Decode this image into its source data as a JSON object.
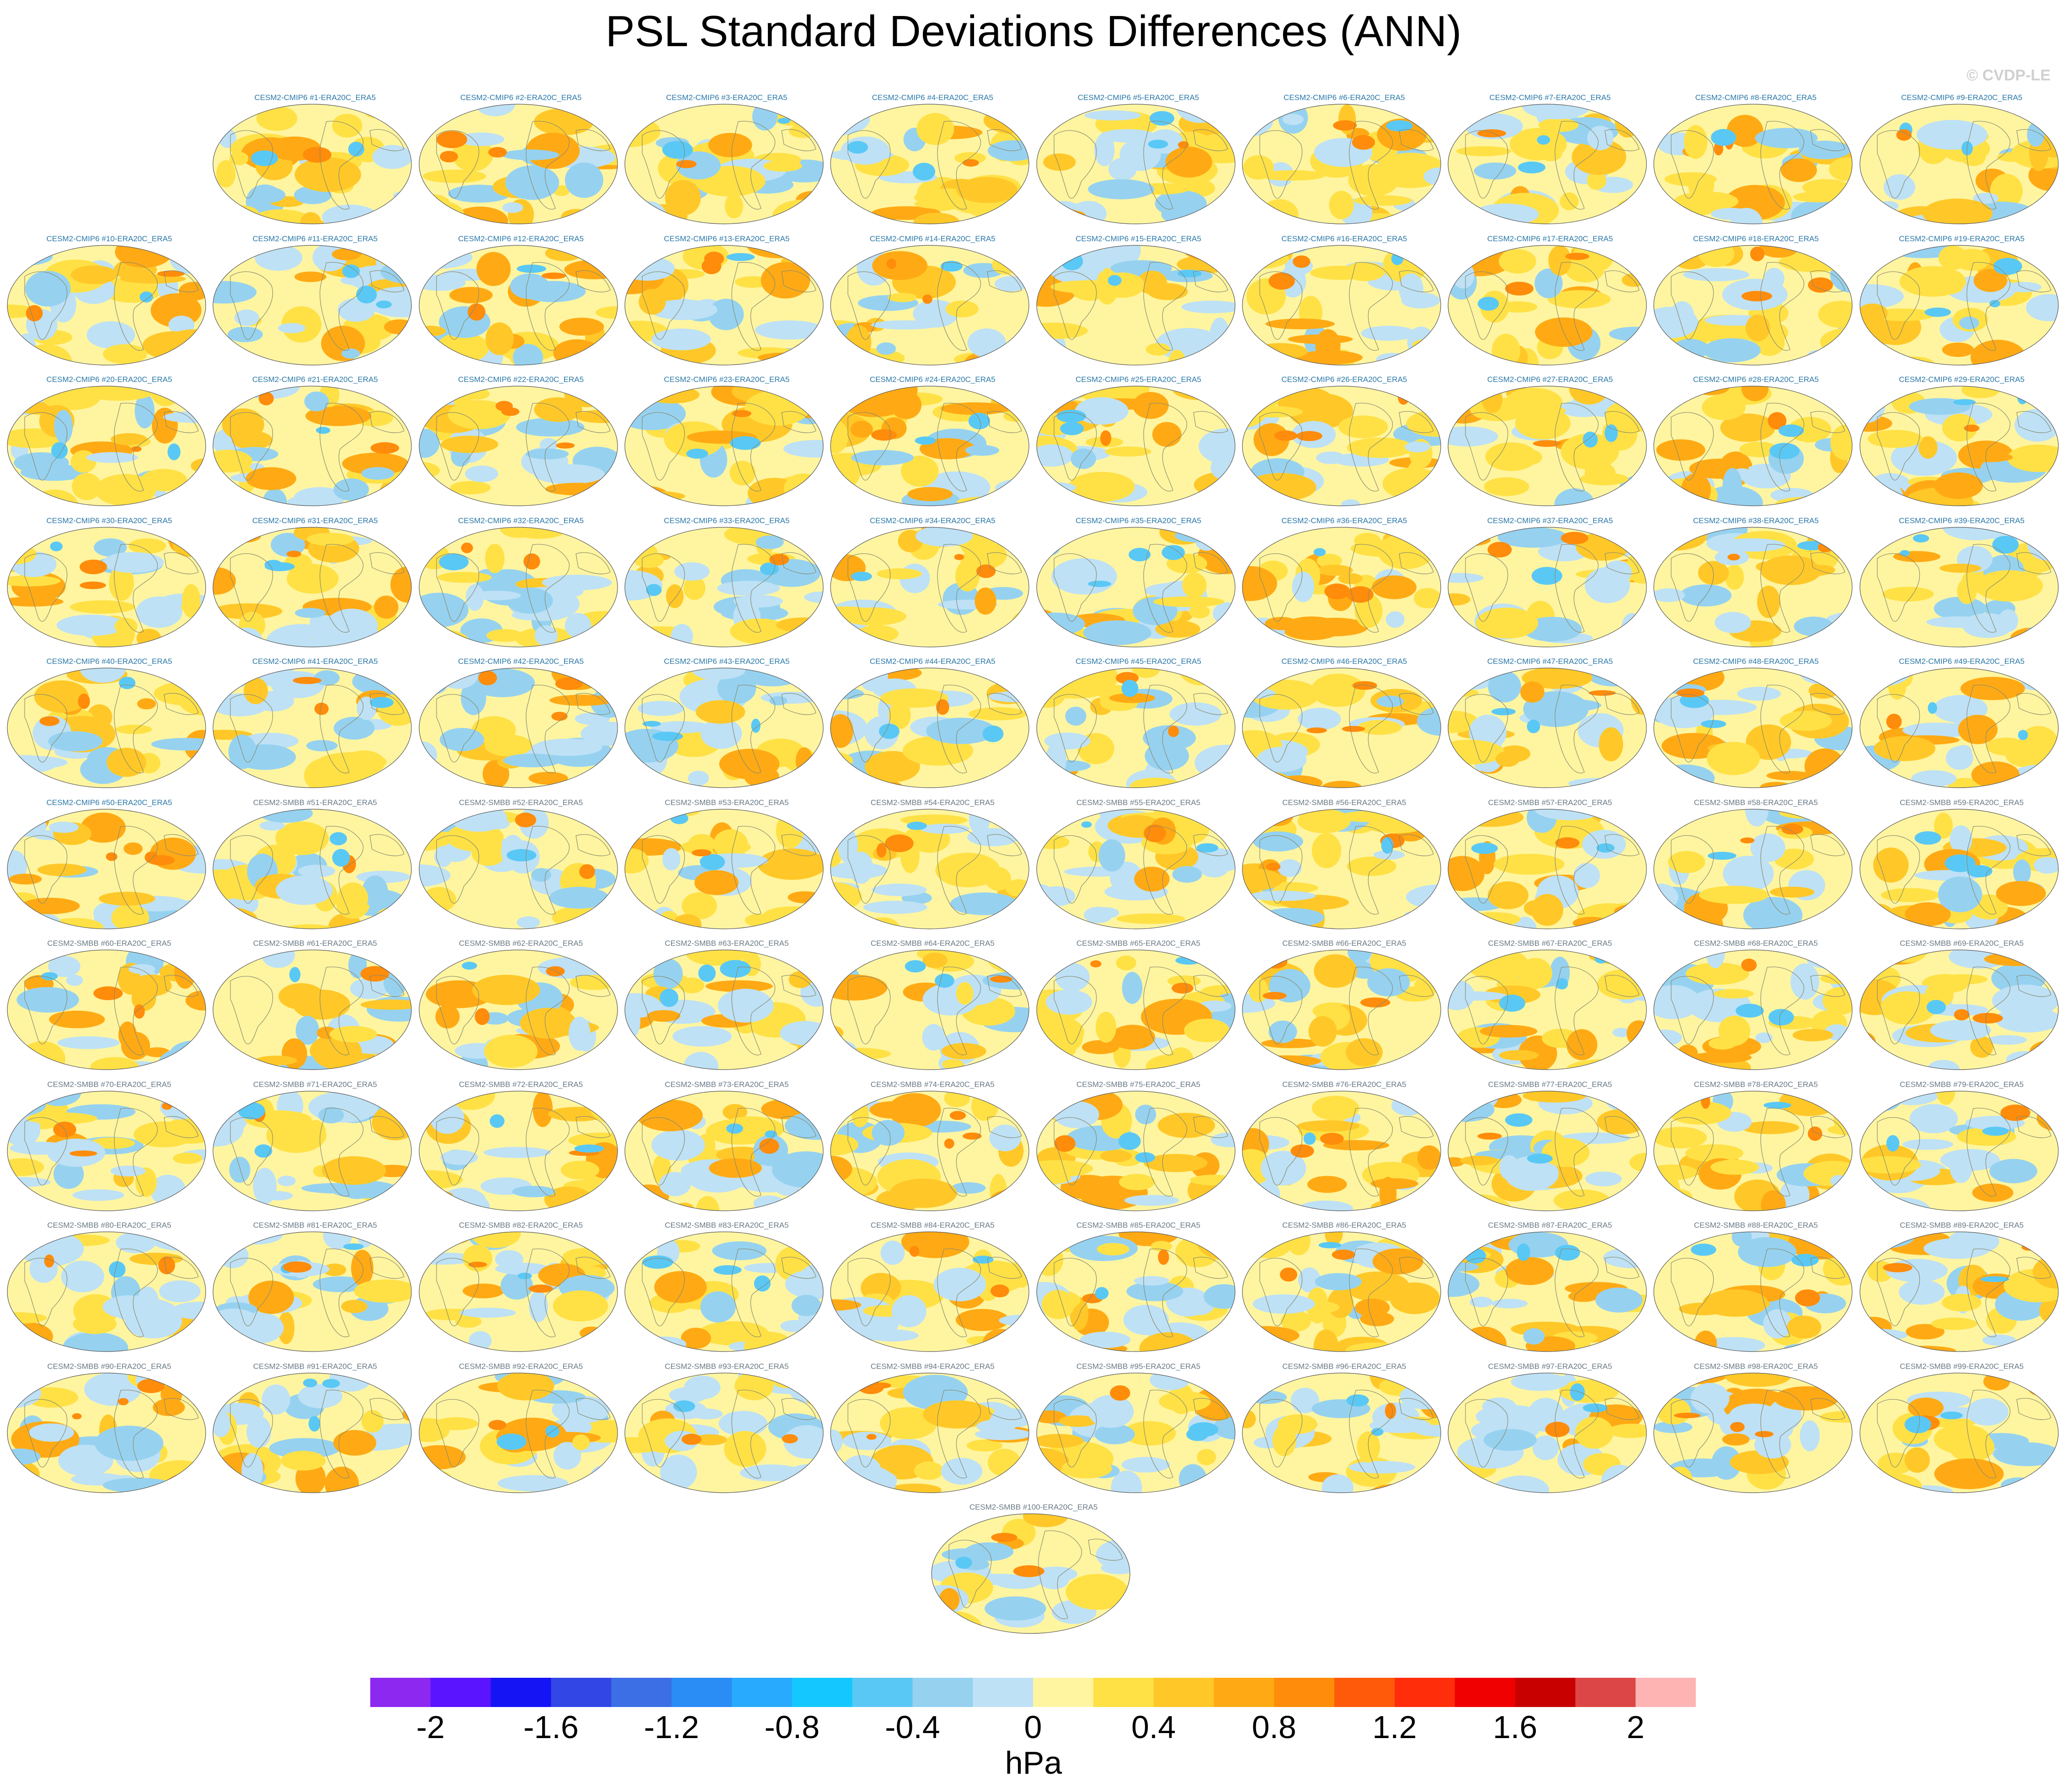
{
  "title": "PSL Standard Deviations Differences (ANN)",
  "credit": "© CVDP-LE",
  "colorbar": {
    "units": "hPa",
    "tick_labels": [
      "-2",
      "-1.6",
      "-1.2",
      "-0.8",
      "-0.4",
      "0",
      "0.4",
      "0.8",
      "1.2",
      "1.6",
      "2"
    ],
    "colors": [
      "#8c28f0",
      "#5a14ff",
      "#1414f5",
      "#3246e6",
      "#3c6ee6",
      "#2a8cf5",
      "#28aaff",
      "#14c8ff",
      "#5ac8f5",
      "#96d2f0",
      "#bee1f5",
      "#fff5a0",
      "#ffe146",
      "#ffc828",
      "#ffaa14",
      "#ff8c0a",
      "#ff5a0a",
      "#ff2d0a",
      "#f00000",
      "#c80000",
      "#dc4646",
      "#ffb4b4"
    ]
  },
  "chart_data": {
    "type": "heatmap",
    "title": "PSL Standard Deviations Differences (ANN)",
    "variable": "PSL",
    "season": "ANN",
    "units": "hPa",
    "color_levels": [
      -2,
      -1.8,
      -1.6,
      -1.4,
      -1.2,
      -1,
      -0.8,
      -0.6,
      -0.4,
      -0.2,
      0,
      0.2,
      0.4,
      0.6,
      0.8,
      1,
      1.2,
      1.4,
      1.6,
      1.8,
      2
    ],
    "panels": [
      "CESM2-CMIP6 #1-ERA20C_ERA5",
      "CESM2-CMIP6 #2-ERA20C_ERA5",
      "CESM2-CMIP6 #3-ERA20C_ERA5",
      "CESM2-CMIP6 #4-ERA20C_ERA5",
      "CESM2-CMIP6 #5-ERA20C_ERA5",
      "CESM2-CMIP6 #6-ERA20C_ERA5",
      "CESM2-CMIP6 #7-ERA20C_ERA5",
      "CESM2-CMIP6 #8-ERA20C_ERA5",
      "CESM2-CMIP6 #9-ERA20C_ERA5",
      "CESM2-CMIP6 #10-ERA20C_ERA5",
      "CESM2-CMIP6 #11-ERA20C_ERA5",
      "CESM2-CMIP6 #12-ERA20C_ERA5",
      "CESM2-CMIP6 #13-ERA20C_ERA5",
      "CESM2-CMIP6 #14-ERA20C_ERA5",
      "CESM2-CMIP6 #15-ERA20C_ERA5",
      "CESM2-CMIP6 #16-ERA20C_ERA5",
      "CESM2-CMIP6 #17-ERA20C_ERA5",
      "CESM2-CMIP6 #18-ERA20C_ERA5",
      "CESM2-CMIP6 #19-ERA20C_ERA5",
      "CESM2-CMIP6 #20-ERA20C_ERA5",
      "CESM2-CMIP6 #21-ERA20C_ERA5",
      "CESM2-CMIP6 #22-ERA20C_ERA5",
      "CESM2-CMIP6 #23-ERA20C_ERA5",
      "CESM2-CMIP6 #24-ERA20C_ERA5",
      "CESM2-CMIP6 #25-ERA20C_ERA5",
      "CESM2-CMIP6 #26-ERA20C_ERA5",
      "CESM2-CMIP6 #27-ERA20C_ERA5",
      "CESM2-CMIP6 #28-ERA20C_ERA5",
      "CESM2-CMIP6 #29-ERA20C_ERA5",
      "CESM2-CMIP6 #30-ERA20C_ERA5",
      "CESM2-CMIP6 #31-ERA20C_ERA5",
      "CESM2-CMIP6 #32-ERA20C_ERA5",
      "CESM2-CMIP6 #33-ERA20C_ERA5",
      "CESM2-CMIP6 #34-ERA20C_ERA5",
      "CESM2-CMIP6 #35-ERA20C_ERA5",
      "CESM2-CMIP6 #36-ERA20C_ERA5",
      "CESM2-CMIP6 #37-ERA20C_ERA5",
      "CESM2-CMIP6 #38-ERA20C_ERA5",
      "CESM2-CMIP6 #39-ERA20C_ERA5",
      "CESM2-CMIP6 #40-ERA20C_ERA5",
      "CESM2-CMIP6 #41-ERA20C_ERA5",
      "CESM2-CMIP6 #42-ERA20C_ERA5",
      "CESM2-CMIP6 #43-ERA20C_ERA5",
      "CESM2-CMIP6 #44-ERA20C_ERA5",
      "CESM2-CMIP6 #45-ERA20C_ERA5",
      "CESM2-CMIP6 #46-ERA20C_ERA5",
      "CESM2-CMIP6 #47-ERA20C_ERA5",
      "CESM2-CMIP6 #48-ERA20C_ERA5",
      "CESM2-CMIP6 #49-ERA20C_ERA5",
      "CESM2-CMIP6 #50-ERA20C_ERA5",
      "CESM2-SMBB #51-ERA20C_ERA5",
      "CESM2-SMBB #52-ERA20C_ERA5",
      "CESM2-SMBB #53-ERA20C_ERA5",
      "CESM2-SMBB #54-ERA20C_ERA5",
      "CESM2-SMBB #55-ERA20C_ERA5",
      "CESM2-SMBB #56-ERA20C_ERA5",
      "CESM2-SMBB #57-ERA20C_ERA5",
      "CESM2-SMBB #58-ERA20C_ERA5",
      "CESM2-SMBB #59-ERA20C_ERA5",
      "CESM2-SMBB #60-ERA20C_ERA5",
      "CESM2-SMBB #61-ERA20C_ERA5",
      "CESM2-SMBB #62-ERA20C_ERA5",
      "CESM2-SMBB #63-ERA20C_ERA5",
      "CESM2-SMBB #64-ERA20C_ERA5",
      "CESM2-SMBB #65-ERA20C_ERA5",
      "CESM2-SMBB #66-ERA20C_ERA5",
      "CESM2-SMBB #67-ERA20C_ERA5",
      "CESM2-SMBB #68-ERA20C_ERA5",
      "CESM2-SMBB #69-ERA20C_ERA5",
      "CESM2-SMBB #70-ERA20C_ERA5",
      "CESM2-SMBB #71-ERA20C_ERA5",
      "CESM2-SMBB #72-ERA20C_ERA5",
      "CESM2-SMBB #73-ERA20C_ERA5",
      "CESM2-SMBB #74-ERA20C_ERA5",
      "CESM2-SMBB #75-ERA20C_ERA5",
      "CESM2-SMBB #76-ERA20C_ERA5",
      "CESM2-SMBB #77-ERA20C_ERA5",
      "CESM2-SMBB #78-ERA20C_ERA5",
      "CESM2-SMBB #79-ERA20C_ERA5",
      "CESM2-SMBB #80-ERA20C_ERA5",
      "CESM2-SMBB #81-ERA20C_ERA5",
      "CESM2-SMBB #82-ERA20C_ERA5",
      "CESM2-SMBB #83-ERA20C_ERA5",
      "CESM2-SMBB #84-ERA20C_ERA5",
      "CESM2-SMBB #85-ERA20C_ERA5",
      "CESM2-SMBB #86-ERA20C_ERA5",
      "CESM2-SMBB #87-ERA20C_ERA5",
      "CESM2-SMBB #88-ERA20C_ERA5",
      "CESM2-SMBB #89-ERA20C_ERA5",
      "CESM2-SMBB #90-ERA20C_ERA5",
      "CESM2-SMBB #91-ERA20C_ERA5",
      "CESM2-SMBB #92-ERA20C_ERA5",
      "CESM2-SMBB #93-ERA20C_ERA5",
      "CESM2-SMBB #94-ERA20C_ERA5",
      "CESM2-SMBB #95-ERA20C_ERA5",
      "CESM2-SMBB #96-ERA20C_ERA5",
      "CESM2-SMBB #97-ERA20C_ERA5",
      "CESM2-SMBB #98-ERA20C_ERA5",
      "CESM2-SMBB #99-ERA20C_ERA5",
      "CESM2-SMBB #100-ERA20C_ERA5"
    ],
    "legend": "bottom"
  }
}
